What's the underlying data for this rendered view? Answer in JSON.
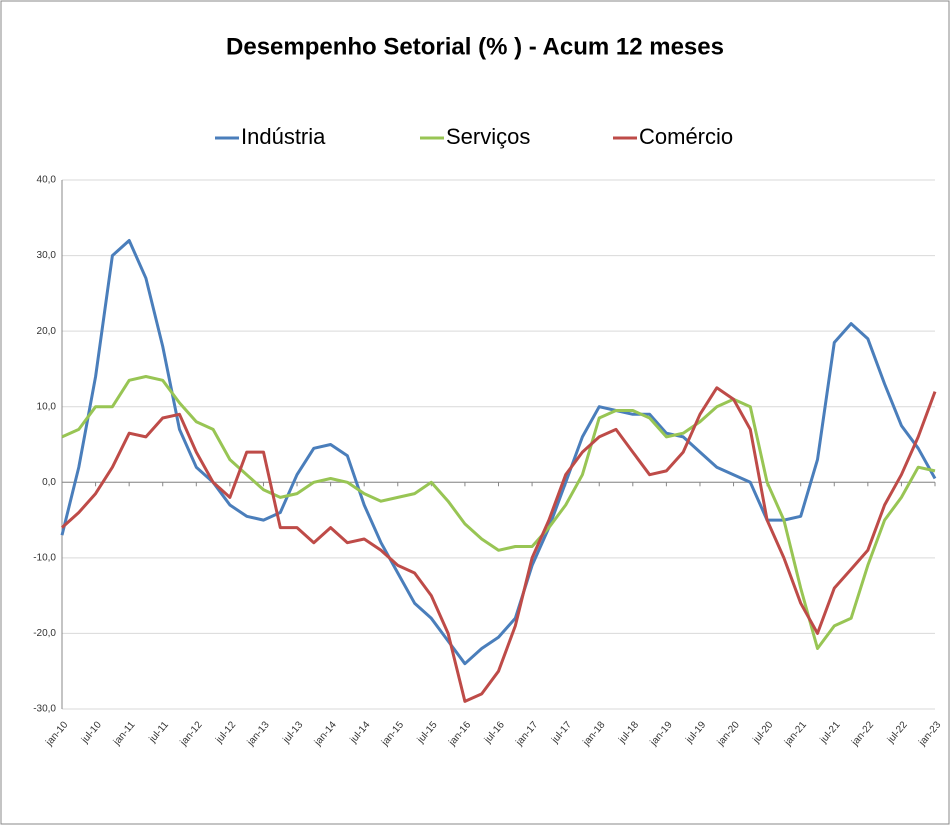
{
  "chart_data": {
    "type": "line",
    "title": "Desempenho Setorial (% ) - Acum 12 meses",
    "categories": [
      "jan-10",
      null,
      "jul-10",
      null,
      "jan-11",
      null,
      "jul-11",
      null,
      "jan-12",
      null,
      "jul-12",
      null,
      "jan-13",
      null,
      "jul-13",
      null,
      "jan-14",
      null,
      "jul-14",
      null,
      "jan-15",
      null,
      "jul-15",
      null,
      "jan-16",
      null,
      "jul-16",
      null,
      "jan-17",
      null,
      "jul-17",
      null,
      "jan-18",
      null,
      "jul-18",
      null,
      "jan-19",
      null,
      "jul-19",
      null,
      "jan-20",
      null,
      "jul-20",
      null,
      "jan-21",
      null,
      "jul-21",
      null,
      "jan-22",
      null,
      "jul-22",
      null,
      "jan-23"
    ],
    "series": [
      {
        "name": "Indústria",
        "color": "#4a7ebb",
        "values": [
          -7,
          2,
          14,
          30,
          32,
          27,
          18,
          7,
          2,
          0,
          -3,
          -4.5,
          -5,
          -4,
          1,
          4.5,
          5,
          3.5,
          -3,
          -8,
          -12,
          -16,
          -18,
          -21,
          -24,
          -22,
          -20.5,
          -18,
          -11,
          -6,
          0,
          6,
          10,
          9.5,
          9,
          9,
          6.5,
          6,
          4,
          2,
          1,
          0,
          -5,
          -5,
          -4.5,
          3,
          18.5,
          21,
          19,
          13,
          7.5,
          4.5,
          0.5
        ]
      },
      {
        "name": "Serviços",
        "color": "#98c554",
        "values": [
          6,
          7,
          10,
          10,
          13.5,
          14,
          13.5,
          10.5,
          8,
          7,
          3,
          1,
          -1,
          -2,
          -1.5,
          0,
          0.5,
          0,
          -1.5,
          -2.5,
          -2,
          -1.5,
          0,
          -2.5,
          -5.5,
          -7.5,
          -9,
          -8.5,
          -8.5,
          -6,
          -3,
          1,
          8.5,
          9.5,
          9.5,
          8.5,
          6,
          6.5,
          8,
          10,
          11,
          10,
          0,
          -5,
          -14,
          -22,
          -19,
          -18,
          -11,
          -5,
          -2,
          2,
          1.5
        ]
      },
      {
        "name": "Comércio",
        "color": "#be4b48",
        "values": [
          -6,
          -4,
          -1.5,
          2,
          6.5,
          6,
          8.5,
          9,
          4,
          0,
          -2,
          4,
          4,
          -6,
          -6,
          -8,
          -6,
          -8,
          -7.5,
          -9,
          -11,
          -12,
          -15,
          -20,
          -29,
          -28,
          -25,
          -19,
          -10,
          -5,
          1,
          4,
          6,
          7,
          4,
          1,
          1.5,
          4,
          9,
          12.5,
          11,
          7,
          -5,
          -10,
          -16,
          -20,
          -14,
          -11.5,
          -9,
          -3,
          1,
          6,
          12
        ]
      }
    ],
    "ylim": [
      -30,
      40
    ],
    "yticks": [
      {
        "value": -30,
        "label": "-30,0"
      },
      {
        "value": -20,
        "label": "-20,0"
      },
      {
        "value": -10,
        "label": "-10,0"
      },
      {
        "value": 0,
        "label": "0,0"
      },
      {
        "value": 10,
        "label": "10,0"
      },
      {
        "value": 20,
        "label": "20,0"
      },
      {
        "value": 30,
        "label": "30,0"
      },
      {
        "value": 40,
        "label": "40,0"
      }
    ],
    "grid": true
  }
}
